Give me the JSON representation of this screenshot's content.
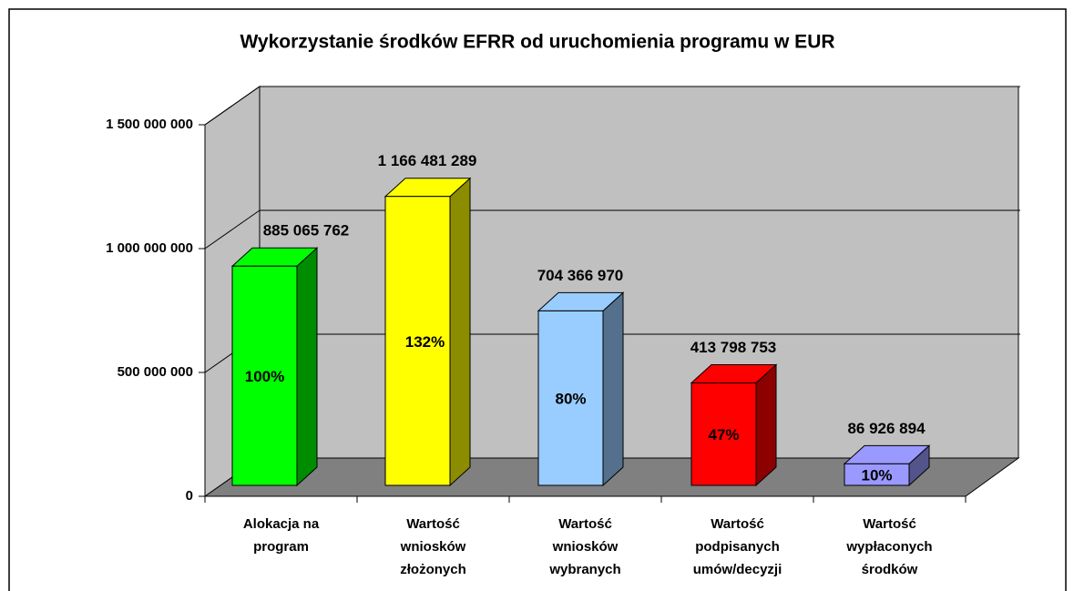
{
  "chart_data": {
    "type": "bar3d",
    "title": "Wykorzystanie środków EFRR od uruchomienia programu w EUR",
    "categories": [
      [
        "Alokacja na",
        "program"
      ],
      [
        "Wartość",
        "wniosków",
        "złożonych"
      ],
      [
        "Wartość",
        "wniosków",
        "wybranych"
      ],
      [
        "Wartość",
        "podpisanych",
        "umów/decyzji"
      ],
      [
        "Wartość",
        "wypłaconych",
        "środków"
      ]
    ],
    "values": [
      885065762,
      1166481289,
      704366970,
      413798753,
      86926894
    ],
    "value_labels": [
      "885 065 762",
      "1 166 481 289",
      "704 366 970",
      "413 798 753",
      "86 926 894"
    ],
    "percent_labels": [
      "100%",
      "132%",
      "80%",
      "47%",
      "10%"
    ],
    "colors": [
      "#00ff00",
      "#ffff00",
      "#99ccff",
      "#ff0000",
      "#9999ff"
    ],
    "ylim": [
      0,
      1500000000
    ],
    "yticks": [
      0,
      {
        "value": 500000000,
        "label": "500 000 000"
      },
      {
        "value": 1000000000,
        "label": "1 000 000 000"
      },
      {
        "value": 1500000000,
        "label": "1 500 000 000"
      }
    ],
    "grid": true
  }
}
